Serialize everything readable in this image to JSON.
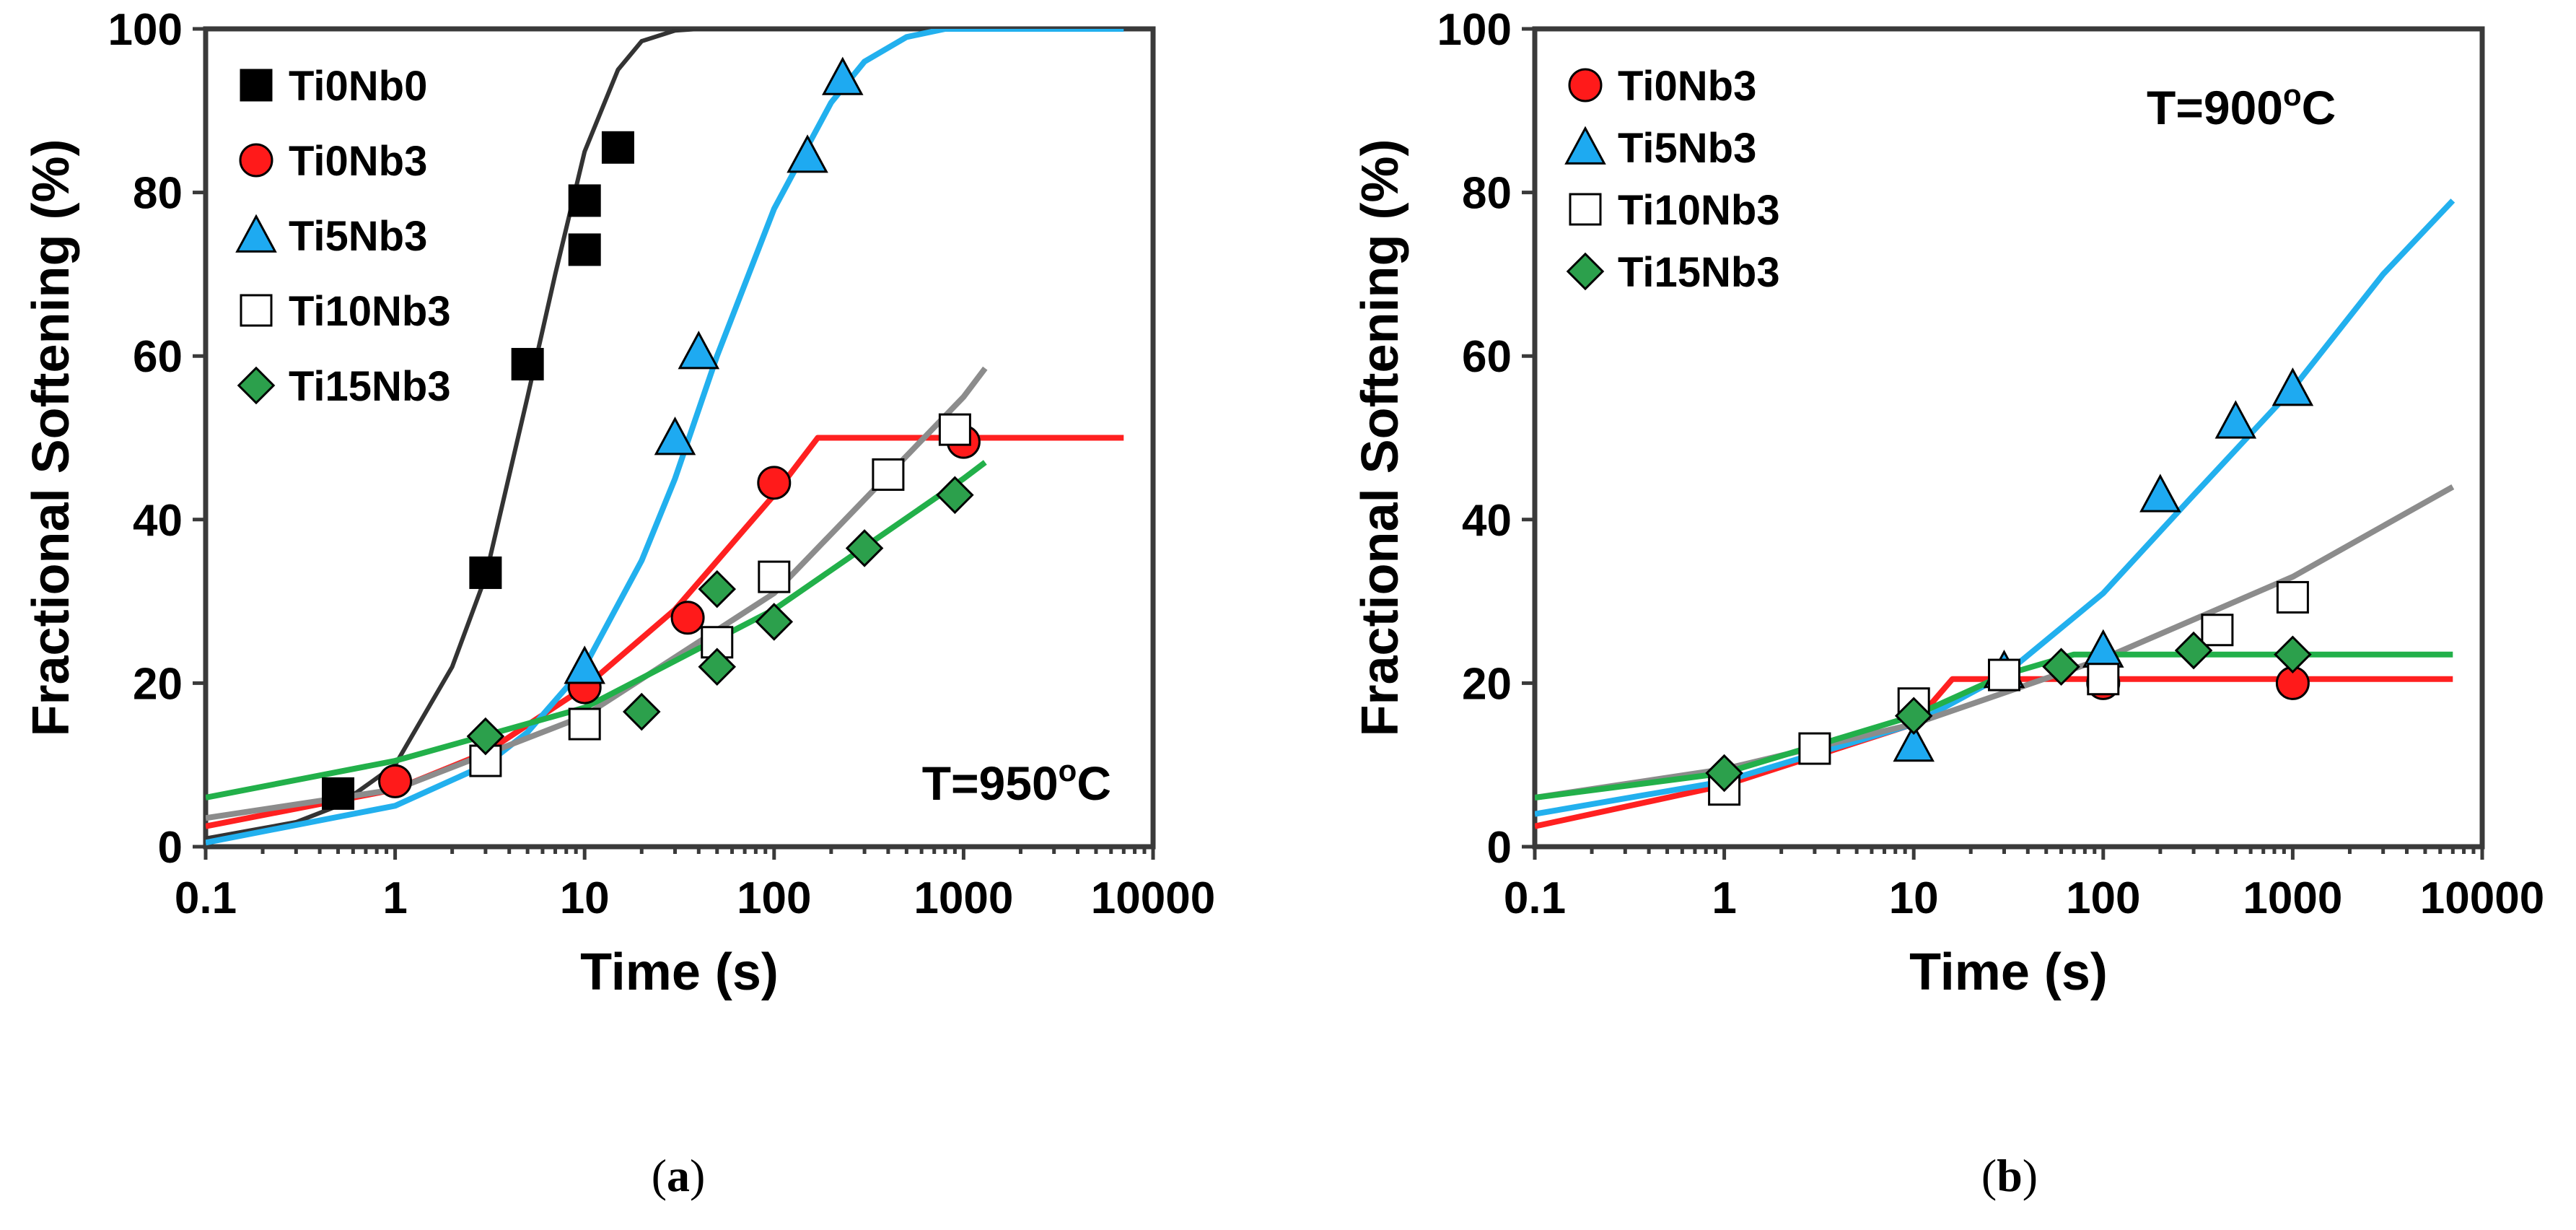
{
  "chart_data": [
    {
      "type": "scatter",
      "panel": "(a)",
      "caption_open": "(",
      "caption_letter": "a",
      "caption_close": ")",
      "annotation": "T=950",
      "annotation_sup": "o",
      "annotation_unit": "C",
      "xlabel": "Time (s)",
      "ylabel": "Fractional Softening (%)",
      "xscale": "log",
      "xlim": [
        0.1,
        10000
      ],
      "ylim": [
        0,
        100
      ],
      "xticks": [
        "0.1",
        "1",
        "10",
        "100",
        "1000",
        "10000"
      ],
      "xtick_values": [
        0.1,
        1,
        10,
        100,
        1000,
        10000
      ],
      "yticks": [
        "0",
        "20",
        "40",
        "60",
        "80",
        "100"
      ],
      "ytick_values": [
        0,
        20,
        40,
        60,
        80,
        100
      ],
      "legend_position": "top-left",
      "series": [
        {
          "name": "Ti0Nb0",
          "marker": "square",
          "color": "#000000",
          "x": [
            0.5,
            3,
            5,
            10,
            10,
            15
          ],
          "y": [
            6.5,
            33.5,
            59,
            73,
            79,
            85.5
          ],
          "line_color": "#333333",
          "curve": {
            "x": [
              0.1,
              0.3,
              0.5,
              1,
              2,
              3,
              5,
              7,
              10,
              15,
              20,
              30,
              40,
              50,
              7000
            ],
            "y": [
              1,
              3,
              5,
              10,
              22,
              33,
              55,
              70,
              85,
              95,
              98.5,
              99.8,
              100,
              100,
              100
            ]
          }
        },
        {
          "name": "Ti0Nb3",
          "marker": "circle",
          "color": "#ff1a1a",
          "x": [
            1,
            10,
            35,
            100,
            1000
          ],
          "y": [
            8,
            19.5,
            28,
            44.5,
            49.5
          ],
          "line_color": "#ff2020",
          "curve": {
            "x": [
              0.1,
              1,
              3,
              10,
              30,
              100,
              170,
              7000
            ],
            "y": [
              2.5,
              7,
              11.5,
              19.5,
              29,
              43,
              50,
              50
            ]
          }
        },
        {
          "name": "Ti5Nb3",
          "marker": "triangle",
          "color": "#1eaaf1",
          "x": [
            10,
            30,
            40,
            150,
            230
          ],
          "y": [
            22,
            50,
            60.5,
            84.5,
            94
          ],
          "line_color": "#22b0ee",
          "curve": {
            "x": [
              0.1,
              1,
              3,
              5,
              10,
              20,
              30,
              50,
              100,
              200,
              300,
              500,
              800,
              7000
            ],
            "y": [
              0.5,
              5,
              10,
              14,
              22,
              35,
              45,
              60,
              78,
              91,
              96,
              99,
              100,
              100
            ]
          }
        },
        {
          "name": "Ti10Nb3",
          "marker": "open-square",
          "color": "#ffffff",
          "x": [
            3,
            10,
            50,
            100,
            400,
            900
          ],
          "y": [
            10.5,
            15,
            25,
            33,
            45.5,
            51
          ],
          "line_color": "#8c8c8c",
          "curve": {
            "x": [
              0.1,
              1,
              10,
              100,
              1000,
              1300
            ],
            "y": [
              3.5,
              7,
              16,
              31,
              55,
              58.5
            ]
          }
        },
        {
          "name": "Ti15Nb3",
          "marker": "diamond",
          "color": "#2ca04c",
          "x": [
            3,
            20,
            50,
            50,
            100,
            300,
            900
          ],
          "y": [
            13.5,
            16.5,
            22,
            31.5,
            27.5,
            36.5,
            43
          ],
          "line_color": "#22b04a",
          "curve": {
            "x": [
              0.1,
              1,
              10,
              100,
              1000,
              1300
            ],
            "y": [
              6,
              10.5,
              17,
              29,
              45,
              47
            ]
          }
        }
      ]
    },
    {
      "type": "scatter",
      "panel": "(b)",
      "caption_open": "(",
      "caption_letter": "b",
      "caption_close": ")",
      "annotation": "T=900",
      "annotation_sup": "o",
      "annotation_unit": "C",
      "xlabel": "Time (s)",
      "ylabel": "Fractional Softening (%)",
      "xscale": "log",
      "xlim": [
        0.1,
        10000
      ],
      "ylim": [
        0,
        100
      ],
      "xticks": [
        "0.1",
        "1",
        "10",
        "100",
        "1000",
        "10000"
      ],
      "xtick_values": [
        0.1,
        1,
        10,
        100,
        1000,
        10000
      ],
      "yticks": [
        "0",
        "20",
        "40",
        "60",
        "80",
        "100"
      ],
      "ytick_values": [
        0,
        20,
        40,
        60,
        80,
        100
      ],
      "legend_position": "top-left",
      "series": [
        {
          "name": "Ti0Nb3",
          "marker": "circle",
          "color": "#ff1a1a",
          "x": [
            100,
            1000
          ],
          "y": [
            20,
            20
          ],
          "line_color": "#ff2020",
          "curve": {
            "x": [
              0.1,
              1,
              10,
              16,
              7000
            ],
            "y": [
              2.5,
              7.5,
              15,
              20.5,
              20.5
            ]
          }
        },
        {
          "name": "Ti5Nb3",
          "marker": "triangle",
          "color": "#1eaaf1",
          "x": [
            10,
            30,
            100,
            200,
            500,
            1000
          ],
          "y": [
            12.5,
            21.5,
            24,
            43,
            52,
            56
          ],
          "line_color": "#22b0ee",
          "curve": {
            "x": [
              0.1,
              1,
              10,
              30,
              100,
              300,
              1000,
              3000,
              7000
            ],
            "y": [
              4,
              8,
              15,
              21,
              31,
              43,
              56,
              70,
              79
            ]
          }
        },
        {
          "name": "Ti10Nb3",
          "marker": "open-square",
          "color": "#ffffff",
          "x": [
            1,
            3,
            10,
            30,
            100,
            400,
            1000
          ],
          "y": [
            7,
            12,
            17.5,
            21,
            20.5,
            26.5,
            30.5
          ],
          "line_color": "#8c8c8c",
          "curve": {
            "x": [
              0.1,
              1,
              10,
              100,
              1000,
              7000
            ],
            "y": [
              6,
              9.5,
              15,
              23,
              33,
              44
            ]
          }
        },
        {
          "name": "Ti15Nb3",
          "marker": "diamond",
          "color": "#2ca04c",
          "x": [
            1,
            10,
            60,
            300,
            1000
          ],
          "y": [
            9,
            16,
            22,
            24,
            23.5
          ],
          "line_color": "#22b04a",
          "curve": {
            "x": [
              0.1,
              1,
              10,
              30,
              70,
              7000
            ],
            "y": [
              6,
              9,
              16,
              21,
              23.5,
              23.5
            ]
          }
        }
      ]
    }
  ]
}
